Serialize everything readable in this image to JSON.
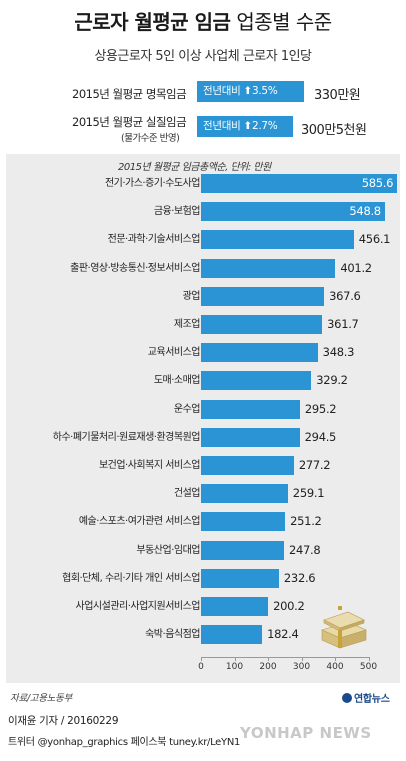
{
  "header": {
    "title_bold": "근로자 월평균 임금",
    "title_light": "업종별 수준",
    "subtitle": "상용근로자 5인 이상 사업체 근로자 1인당"
  },
  "kpis": [
    {
      "label": "2015년 월평균 명목임금",
      "sublabel": "",
      "badge": "전년대비 ⬆3.5%",
      "value": "330만원"
    },
    {
      "label": "2015년 월평균 실질임금",
      "sublabel": "(물가수준 반영)",
      "badge": "전년대비 ⬆2.7%",
      "value": "300만5천원"
    }
  ],
  "chart_data": {
    "type": "bar",
    "orientation": "horizontal",
    "title": "2015년 월평균 임금총액순, 단위: 만원",
    "categories": [
      "전기·가스·증기·수도사업",
      "금융·보험업",
      "전문·과학·기술서비스업",
      "출판·영상·방송통신·정보서비스업",
      "광업",
      "제조업",
      "교육서비스업",
      "도매·소매업",
      "운수업",
      "하수·폐기물처리·원료재생·환경복원업",
      "보건업·사회복지 서비스업",
      "건설업",
      "예술·스포츠·여가관련 서비스업",
      "부동산업·임대업",
      "협회·단체, 수리·기타 개인 서비스업",
      "사업시설관리·사업지원서비스업",
      "숙박·음식점업"
    ],
    "values": [
      585.6,
      548.8,
      456.1,
      401.2,
      367.6,
      361.7,
      348.3,
      329.2,
      295.2,
      294.5,
      277.2,
      259.1,
      251.2,
      247.8,
      232.6,
      200.2,
      182.4
    ],
    "xlim": [
      0,
      600
    ],
    "xticks": [
      0,
      100,
      200,
      300,
      400,
      500
    ],
    "bar_color": "#2a94d4"
  },
  "footer": {
    "source": "자료/고용노동부",
    "byline": "이재윤 기자 / 20160229",
    "social": "트위터 @yonhap_graphics  페이스북 tuney.kr/LeYN1",
    "brand": "연합뉴스",
    "watermark": "YONHAP NEWS"
  }
}
